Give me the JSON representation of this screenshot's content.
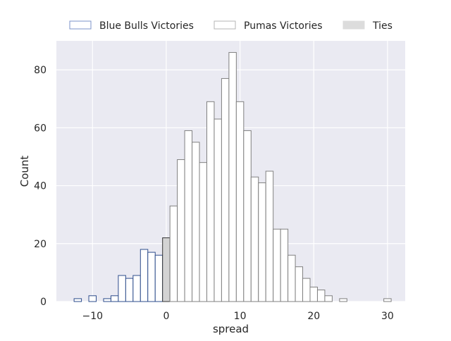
{
  "chart_data": {
    "type": "bar",
    "title": "",
    "xlabel": "spread",
    "ylabel": "Count",
    "xlim": [
      -14.9,
      32.4
    ],
    "ylim": [
      0,
      90
    ],
    "xticks": [
      -10,
      0,
      10,
      20,
      30
    ],
    "xtick_labels": [
      "−10",
      "0",
      "10",
      "20",
      "30"
    ],
    "yticks": [
      0,
      20,
      40,
      60,
      80
    ],
    "grid": true,
    "legend": {
      "placement": "top-center-outside",
      "entries": [
        {
          "name": "Blue Bulls Victories",
          "fill": "#ffffff",
          "edge": "#7b93c9"
        },
        {
          "name": "Pumas Victories",
          "fill": "#ffffff",
          "edge": "#b4b4b4"
        },
        {
          "name": "Ties",
          "fill": "#dcdcdc",
          "edge": "#dcdcdc"
        }
      ]
    },
    "colors": {
      "background": "#eaeaf2",
      "grid": "#ffffff",
      "blue_bulls_edge": "#2e4d8c",
      "pumas_edge": "#808080",
      "ties_fill": "#d3d3d3",
      "ties_edge": "#333333"
    },
    "series": [
      {
        "name": "Blue Bulls Victories",
        "bin_width": 1,
        "bins": [
          {
            "x": -12,
            "value": 1
          },
          {
            "x": -10,
            "value": 2
          },
          {
            "x": -8,
            "value": 1
          },
          {
            "x": -7,
            "value": 2
          },
          {
            "x": -6,
            "value": 9
          },
          {
            "x": -5,
            "value": 8
          },
          {
            "x": -4,
            "value": 9
          },
          {
            "x": -3,
            "value": 18
          },
          {
            "x": -2,
            "value": 17
          },
          {
            "x": -1,
            "value": 16
          }
        ]
      },
      {
        "name": "Ties",
        "bin_width": 1,
        "bins": [
          {
            "x": 0,
            "value": 22
          }
        ]
      },
      {
        "name": "Pumas Victories",
        "bin_width": 1,
        "bins": [
          {
            "x": 1,
            "value": 33
          },
          {
            "x": 2,
            "value": 49
          },
          {
            "x": 3,
            "value": 59
          },
          {
            "x": 4,
            "value": 55
          },
          {
            "x": 5,
            "value": 48
          },
          {
            "x": 6,
            "value": 69
          },
          {
            "x": 7,
            "value": 63
          },
          {
            "x": 8,
            "value": 77
          },
          {
            "x": 9,
            "value": 86
          },
          {
            "x": 10,
            "value": 69
          },
          {
            "x": 11,
            "value": 59
          },
          {
            "x": 12,
            "value": 43
          },
          {
            "x": 13,
            "value": 41
          },
          {
            "x": 14,
            "value": 45
          },
          {
            "x": 15,
            "value": 25
          },
          {
            "x": 16,
            "value": 25
          },
          {
            "x": 17,
            "value": 16
          },
          {
            "x": 18,
            "value": 12
          },
          {
            "x": 19,
            "value": 8
          },
          {
            "x": 20,
            "value": 5
          },
          {
            "x": 21,
            "value": 4
          },
          {
            "x": 22,
            "value": 2
          },
          {
            "x": 24,
            "value": 1
          },
          {
            "x": 30,
            "value": 1
          }
        ]
      }
    ]
  }
}
